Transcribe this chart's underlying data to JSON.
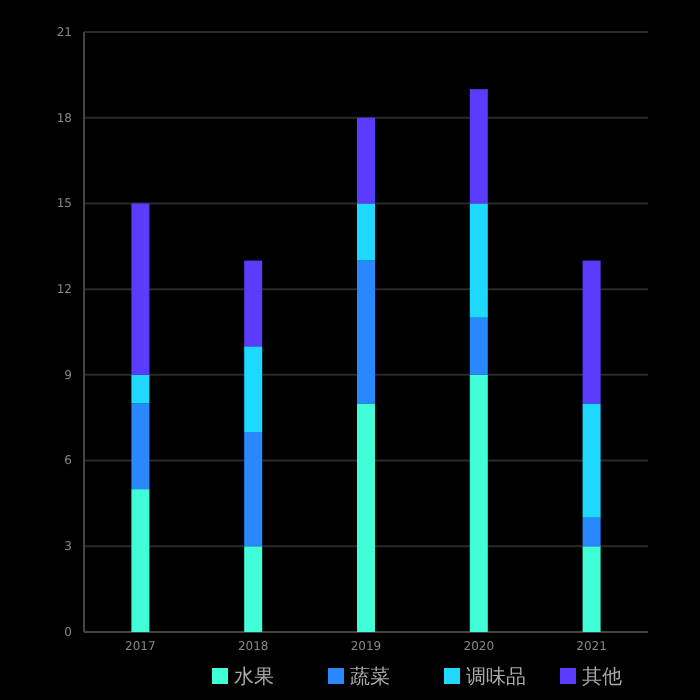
{
  "chart_data": {
    "type": "bar",
    "stacked": true,
    "categories": [
      "2017",
      "2018",
      "2019",
      "2020",
      "2021"
    ],
    "series": [
      {
        "name": "水果",
        "color": "#40ffd8",
        "values": [
          5,
          3,
          8,
          9,
          3
        ]
      },
      {
        "name": "蔬菜",
        "color": "#2a88ff",
        "values": [
          3,
          4,
          5,
          2,
          1
        ]
      },
      {
        "name": "调味品",
        "color": "#1fd8ff",
        "values": [
          1,
          3,
          2,
          4,
          4
        ]
      },
      {
        "name": "其他",
        "color": "#5b3cff",
        "values": [
          6,
          3,
          3,
          4,
          5
        ]
      }
    ],
    "ylim": [
      0,
      21
    ],
    "yticks": [
      0,
      3,
      6,
      9,
      12,
      15,
      18,
      21
    ],
    "grid": "y",
    "legend": "bottom right"
  }
}
